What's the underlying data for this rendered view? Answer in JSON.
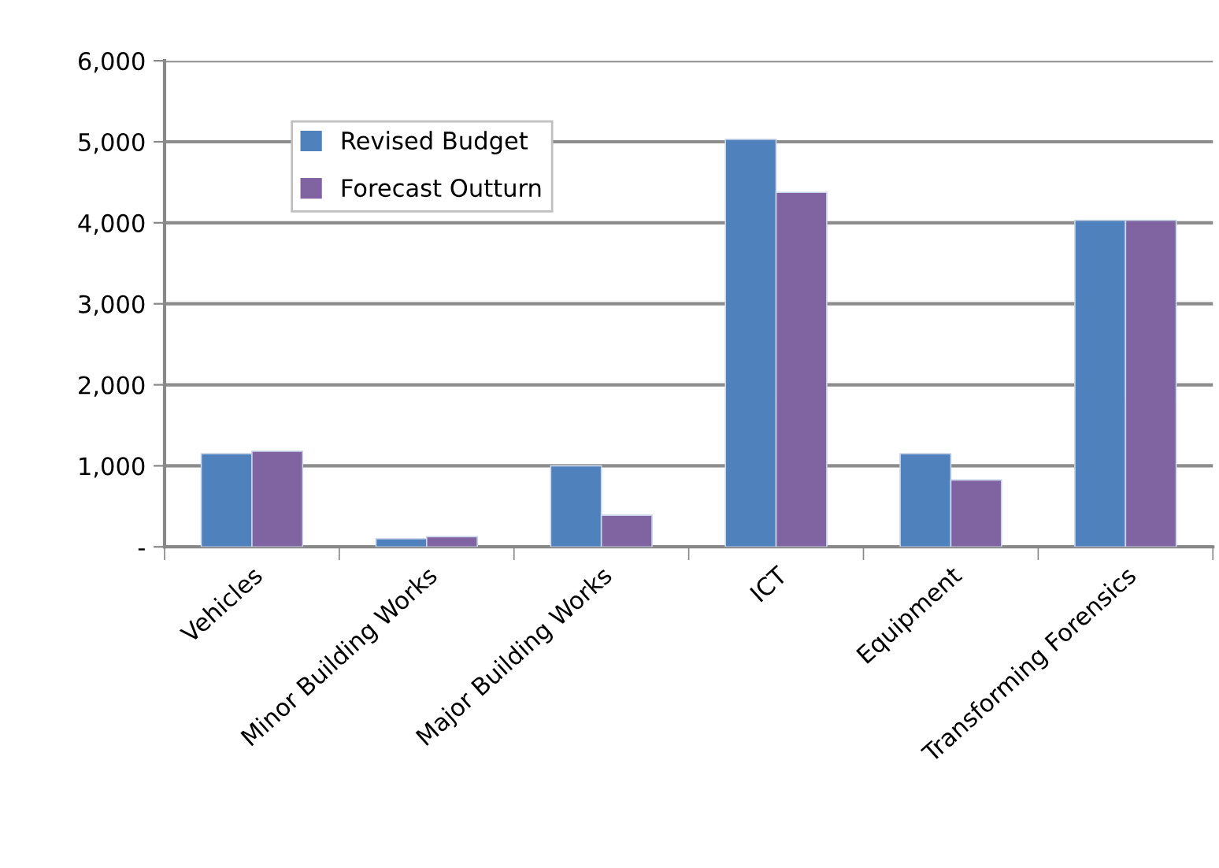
{
  "chart_data": {
    "type": "bar",
    "categories": [
      "Vehicles",
      "Minor Building Works",
      "Major Building Works",
      "ICT",
      "Equipment",
      "Transforming Forensics"
    ],
    "series": [
      {
        "name": "Revised Budget",
        "color": "#4f81bd",
        "values": [
          1150,
          100,
          1000,
          5030,
          1150,
          4030
        ]
      },
      {
        "name": "Forecast Outturn",
        "color": "#8064a2",
        "values": [
          1180,
          125,
          390,
          4375,
          825,
          4030
        ]
      }
    ],
    "ylim": [
      0,
      6000
    ],
    "yticks": [
      {
        "value": 0,
        "label": "-"
      },
      {
        "value": 1000,
        "label": "1,000"
      },
      {
        "value": 2000,
        "label": "2,000"
      },
      {
        "value": 3000,
        "label": "3,000"
      },
      {
        "value": 4000,
        "label": "4,000"
      },
      {
        "value": 5000,
        "label": "5,000"
      },
      {
        "value": 6000,
        "label": "6,000"
      }
    ],
    "grid": "y",
    "legend": "top left"
  }
}
